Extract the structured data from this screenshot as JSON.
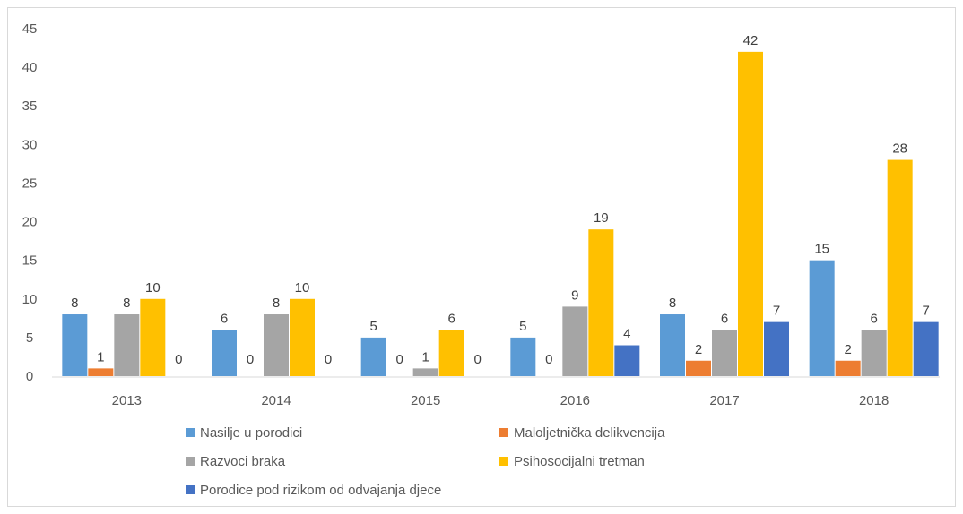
{
  "chart_data": {
    "type": "bar",
    "title": "",
    "xlabel": "",
    "ylabel": "",
    "categories": [
      "2013",
      "2014",
      "2015",
      "2016",
      "2017",
      "2018"
    ],
    "ylim": [
      0,
      45
    ],
    "yticks": [
      0,
      5,
      10,
      15,
      20,
      25,
      30,
      35,
      40,
      45
    ],
    "grid": false,
    "legend_position": "bottom",
    "series": [
      {
        "name": "Nasilje u porodici",
        "color": "#5b9bd5",
        "values": [
          8,
          6,
          5,
          5,
          8,
          15
        ]
      },
      {
        "name": "Maloljetnička delikvencija",
        "color": "#ed7d31",
        "values": [
          1,
          0,
          0,
          0,
          2,
          2
        ]
      },
      {
        "name": "Razvoci braka",
        "color": "#a5a5a5",
        "values": [
          8,
          8,
          1,
          9,
          6,
          6
        ]
      },
      {
        "name": "Psihosocijalni tretman",
        "color": "#ffc000",
        "values": [
          10,
          10,
          6,
          19,
          42,
          28
        ]
      },
      {
        "name": "Porodice pod rizikom od odvajanja djece",
        "color": "#4472c4",
        "values": [
          0,
          0,
          0,
          4,
          7,
          7
        ]
      }
    ]
  }
}
